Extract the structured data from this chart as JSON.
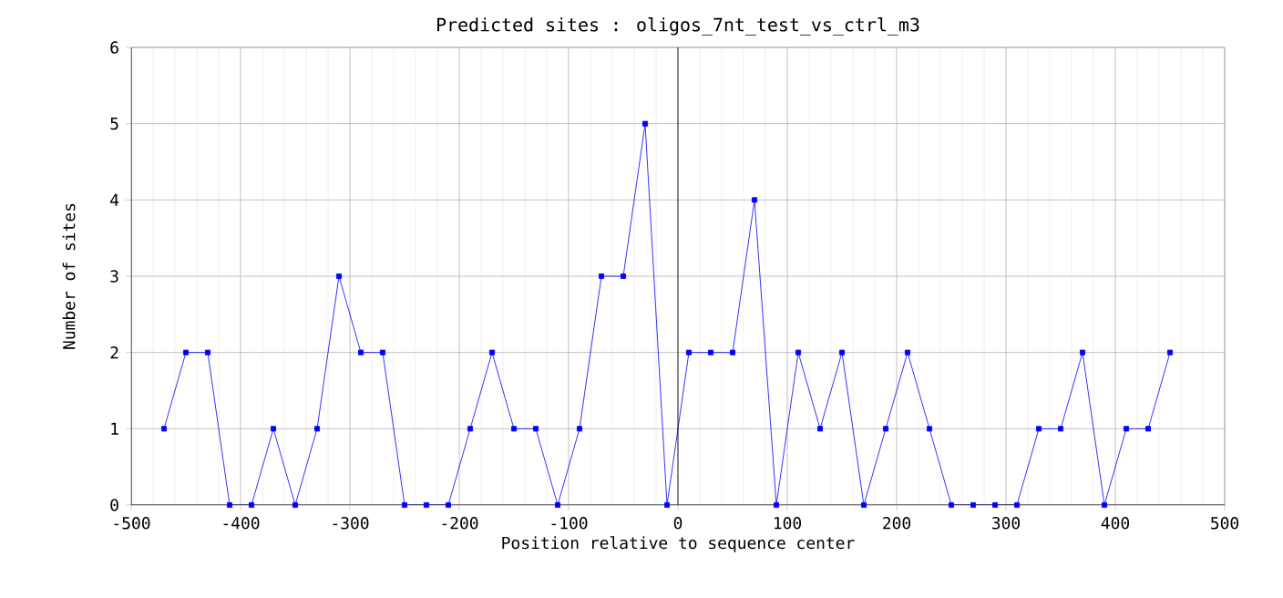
{
  "chart_data": {
    "type": "line",
    "title": "Predicted sites : oligos_7nt_test_vs_ctrl_m3",
    "xlabel": "Position relative to sequence center",
    "ylabel": "Number of sites",
    "x": [
      -470,
      -450,
      -430,
      -410,
      -390,
      -370,
      -350,
      -330,
      -310,
      -290,
      -270,
      -250,
      -230,
      -210,
      -190,
      -170,
      -150,
      -130,
      -110,
      -90,
      -70,
      -50,
      -30,
      -10,
      10,
      30,
      50,
      70,
      90,
      110,
      130,
      150,
      170,
      190,
      210,
      230,
      250,
      270,
      290,
      310,
      330,
      350,
      370,
      390,
      410,
      430,
      450
    ],
    "values": [
      1,
      2,
      2,
      0,
      0,
      1,
      0,
      1,
      3,
      2,
      2,
      0,
      0,
      0,
      1,
      2,
      1,
      1,
      0,
      1,
      3,
      3,
      5,
      0,
      2,
      2,
      2,
      4,
      0,
      2,
      1,
      2,
      0,
      1,
      2,
      1,
      0,
      0,
      0,
      0,
      1,
      1,
      2,
      0,
      1,
      1,
      2
    ],
    "color": "#0000ff",
    "marker": "square",
    "line_style": "solid",
    "grid": true,
    "xlim": [
      -500,
      500
    ],
    "xticks": [
      -500,
      -400,
      -300,
      -200,
      -100,
      0,
      100,
      200,
      300,
      400,
      500
    ],
    "ylim": [
      0,
      6
    ],
    "yticks": [
      0,
      1,
      2,
      3,
      4,
      5,
      6
    ],
    "ref_lines": [
      {
        "axis": "x",
        "value": 0,
        "color": "#000000"
      }
    ]
  }
}
